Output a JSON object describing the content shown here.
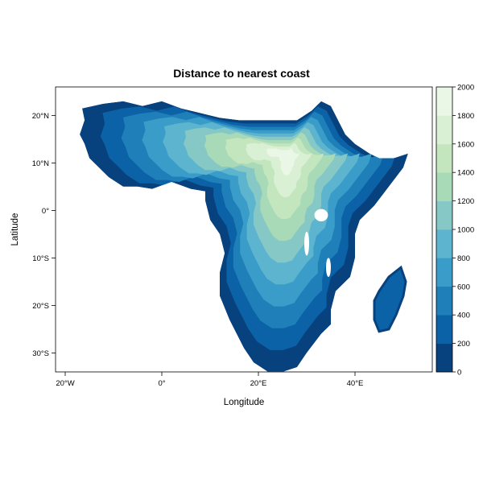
{
  "title": "Distance to nearest coast",
  "x_label": "Longitude",
  "y_label": "Latitude",
  "x_ticks": [
    {
      "value": -20,
      "label": "20°W"
    },
    {
      "value": 0,
      "label": "0°"
    },
    {
      "value": 20,
      "label": "20°E"
    },
    {
      "value": 40,
      "label": "40°E"
    }
  ],
  "y_ticks": [
    {
      "value": 20,
      "label": "20°N"
    },
    {
      "value": 10,
      "label": "10°N"
    },
    {
      "value": 0,
      "label": "0°"
    },
    {
      "value": -10,
      "label": "10°S"
    },
    {
      "value": -20,
      "label": "20°S"
    },
    {
      "value": -30,
      "label": "30°S"
    }
  ],
  "colorbar": {
    "ticks": [
      "0",
      "200",
      "400",
      "600",
      "800",
      "1000",
      "1200",
      "1400",
      "1600",
      "1800",
      "2000"
    ],
    "colors": [
      "#08427e",
      "#0c62a6",
      "#1f80b9",
      "#3a9cc8",
      "#5db4ce",
      "#86c8c6",
      "#a8dab8",
      "#c4e6bf",
      "#daf0d4",
      "#ebf7e6"
    ]
  },
  "map": {
    "x_range": [
      -22,
      56
    ],
    "y_range": [
      -34,
      26
    ],
    "land_color": "#08427e",
    "outline": [
      [
        -16.5,
        21.5
      ],
      [
        -12,
        22.5
      ],
      [
        -8,
        23
      ],
      [
        -4,
        22
      ],
      [
        0,
        23
      ],
      [
        4,
        21.5
      ],
      [
        8,
        20.5
      ],
      [
        12,
        19.5
      ],
      [
        16,
        19
      ],
      [
        20,
        19
      ],
      [
        24,
        19
      ],
      [
        28,
        19
      ],
      [
        31,
        21
      ],
      [
        33,
        23
      ],
      [
        35,
        22
      ],
      [
        37,
        18
      ],
      [
        38,
        16
      ],
      [
        40,
        14
      ],
      [
        43,
        12
      ],
      [
        45,
        11
      ],
      [
        48,
        11
      ],
      [
        51,
        12
      ],
      [
        50,
        9
      ],
      [
        47,
        5
      ],
      [
        44,
        1
      ],
      [
        41,
        -2
      ],
      [
        40,
        -5
      ],
      [
        40,
        -10
      ],
      [
        39,
        -14
      ],
      [
        36,
        -17
      ],
      [
        35,
        -21
      ],
      [
        35,
        -24
      ],
      [
        33,
        -26
      ],
      [
        30,
        -30
      ],
      [
        28,
        -33
      ],
      [
        25,
        -34
      ],
      [
        22,
        -34
      ],
      [
        19,
        -32
      ],
      [
        17,
        -29
      ],
      [
        14,
        -23
      ],
      [
        12,
        -18
      ],
      [
        12,
        -13
      ],
      [
        13,
        -9
      ],
      [
        12,
        -5
      ],
      [
        10,
        -2
      ],
      [
        9,
        2
      ],
      [
        9,
        4
      ],
      [
        6,
        4.5
      ],
      [
        2,
        6
      ],
      [
        -2,
        4.5
      ],
      [
        -5,
        5
      ],
      [
        -8,
        5
      ],
      [
        -11,
        7
      ],
      [
        -13,
        9
      ],
      [
        -15,
        11
      ],
      [
        -16,
        14
      ],
      [
        -17,
        16
      ],
      [
        -16,
        19
      ]
    ],
    "inland_center": [
      26,
      12
    ],
    "madagascar": [
      [
        49.5,
        -12
      ],
      [
        50.5,
        -15
      ],
      [
        50,
        -18
      ],
      [
        48.5,
        -22
      ],
      [
        47,
        -25
      ],
      [
        45,
        -25.5
      ],
      [
        44,
        -23
      ],
      [
        44,
        -19
      ],
      [
        45,
        -17
      ],
      [
        47,
        -14
      ]
    ],
    "lakes": [
      {
        "cx": 33,
        "cy": -1,
        "rx": 1.4,
        "ry": 1.3
      },
      {
        "cx": 30,
        "cy": -7,
        "rx": 0.5,
        "ry": 2.5
      },
      {
        "cx": 34.5,
        "cy": -12,
        "rx": 0.5,
        "ry": 2
      }
    ]
  }
}
